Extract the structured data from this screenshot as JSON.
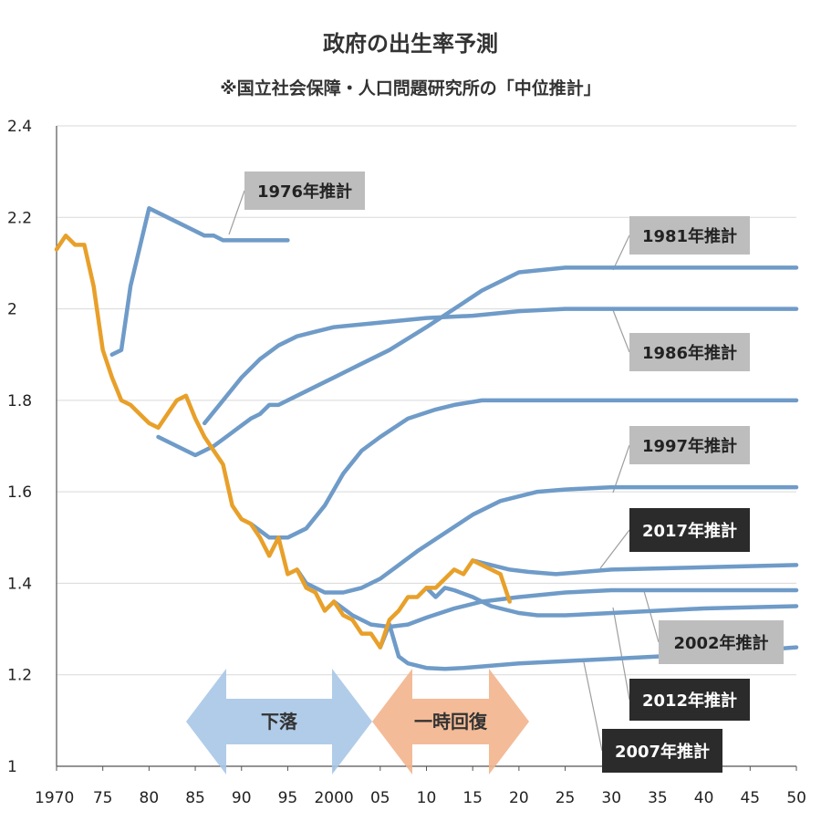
{
  "header": {
    "title": "政府の出生率予測",
    "subtitle": "※国立社会保障・人口問題研究所の「中位推計」"
  },
  "colors": {
    "actual": "#E8A02A",
    "projection": "#6F9BC8",
    "label_light_bg": "#BDBDBD",
    "label_dark_bg": "#2B2B2B",
    "arrow_down": "#A7C6E6",
    "arrow_up": "#F2B48C"
  },
  "chart_data": {
    "type": "line",
    "title": "政府の出生率予測",
    "subtitle": "※国立社会保障・人口問題研究所の「中位推計」",
    "xlim": [
      1970,
      2050
    ],
    "ylim": [
      1,
      2.4
    ],
    "grid": "horizontal",
    "x_ticks": [
      {
        "value": 1970,
        "label": "1970"
      },
      {
        "value": 1975,
        "label": "75"
      },
      {
        "value": 1980,
        "label": "80"
      },
      {
        "value": 1985,
        "label": "85"
      },
      {
        "value": 1990,
        "label": "90"
      },
      {
        "value": 1995,
        "label": "95"
      },
      {
        "value": 2000,
        "label": "2000"
      },
      {
        "value": 2005,
        "label": "05"
      },
      {
        "value": 2010,
        "label": "10"
      },
      {
        "value": 2015,
        "label": "15"
      },
      {
        "value": 2020,
        "label": "20"
      },
      {
        "value": 2025,
        "label": "25"
      },
      {
        "value": 2030,
        "label": "30"
      },
      {
        "value": 2035,
        "label": "35"
      },
      {
        "value": 2040,
        "label": "40"
      },
      {
        "value": 2045,
        "label": "45"
      },
      {
        "value": 2050,
        "label": "50"
      }
    ],
    "y_ticks": [
      {
        "value": 1,
        "label": "1"
      },
      {
        "value": 1.2,
        "label": "1.2"
      },
      {
        "value": 1.4,
        "label": "1.4"
      },
      {
        "value": 1.6,
        "label": "1.6"
      },
      {
        "value": 1.8,
        "label": "1.8"
      },
      {
        "value": 2,
        "label": "2"
      },
      {
        "value": 2.2,
        "label": "2.2"
      },
      {
        "value": 2.4,
        "label": "2.4"
      }
    ],
    "actual": {
      "x": [
        1970,
        1971,
        1972,
        1973,
        1974,
        1975,
        1976,
        1977,
        1978,
        1979,
        1980,
        1981,
        1982,
        1983,
        1984,
        1985,
        1986,
        1987,
        1988,
        1989,
        1990,
        1991,
        1992,
        1993,
        1994,
        1995,
        1996,
        1997,
        1998,
        1999,
        2000,
        2001,
        2002,
        2003,
        2004,
        2005,
        2006,
        2007,
        2008,
        2009,
        2010,
        2011,
        2012,
        2013,
        2014,
        2015,
        2016,
        2017,
        2018,
        2019
      ],
      "y": [
        2.13,
        2.16,
        2.14,
        2.14,
        2.05,
        1.91,
        1.85,
        1.8,
        1.79,
        1.77,
        1.75,
        1.74,
        1.77,
        1.8,
        1.81,
        1.76,
        1.72,
        1.69,
        1.66,
        1.57,
        1.54,
        1.53,
        1.5,
        1.46,
        1.5,
        1.42,
        1.43,
        1.39,
        1.38,
        1.34,
        1.36,
        1.33,
        1.32,
        1.29,
        1.29,
        1.26,
        1.32,
        1.34,
        1.37,
        1.37,
        1.39,
        1.39,
        1.41,
        1.43,
        1.42,
        1.45,
        1.44,
        1.43,
        1.42,
        1.36
      ]
    },
    "projections": [
      {
        "name": "1976年推計",
        "dark": false,
        "x": [
          1976,
          1977,
          1978,
          1980,
          1983,
          1986,
          1987,
          1988,
          1990,
          1995
        ],
        "y": [
          1.9,
          1.91,
          2.05,
          2.22,
          2.19,
          2.16,
          2.16,
          2.15,
          2.15,
          2.15
        ]
      },
      {
        "name": "1981年推計",
        "dark": false,
        "x": [
          1981,
          1983,
          1985,
          1987,
          1989,
          1991,
          1992,
          1993,
          1994,
          1996,
          1998,
          2000,
          2003,
          2006,
          2010,
          2013,
          2016,
          2020,
          2025,
          2030,
          2040,
          2050
        ],
        "y": [
          1.72,
          1.7,
          1.68,
          1.7,
          1.73,
          1.76,
          1.77,
          1.79,
          1.79,
          1.81,
          1.83,
          1.85,
          1.88,
          1.91,
          1.96,
          2.0,
          2.04,
          2.08,
          2.09,
          2.09,
          2.09,
          2.09
        ]
      },
      {
        "name": "1986年推計",
        "dark": false,
        "x": [
          1986,
          1988,
          1990,
          1992,
          1994,
          1996,
          1998,
          2000,
          2005,
          2010,
          2015,
          2020,
          2025,
          2030,
          2040,
          2050
        ],
        "y": [
          1.75,
          1.8,
          1.85,
          1.89,
          1.92,
          1.94,
          1.95,
          1.96,
          1.97,
          1.98,
          1.985,
          1.995,
          2.0,
          2.0,
          2.0,
          2.0
        ]
      },
      {
        "name": "1997年推計",
        "dark": false,
        "x": [
          1991,
          1993,
          1995,
          1997,
          1999,
          2001,
          2003,
          2005,
          2008,
          2011,
          2013,
          2016,
          2020,
          2025,
          2030,
          2040,
          2050
        ],
        "y": [
          1.53,
          1.5,
          1.5,
          1.52,
          1.57,
          1.64,
          1.69,
          1.72,
          1.76,
          1.78,
          1.79,
          1.8,
          1.8,
          1.8,
          1.8,
          1.8,
          1.8
        ]
      },
      {
        "name": "2002年推計",
        "dark": false,
        "x": [
          1996,
          1997,
          1999,
          2001,
          2003,
          2005,
          2007,
          2009,
          2012,
          2015,
          2018,
          2022,
          2025,
          2030,
          2040,
          2050
        ],
        "y": [
          1.43,
          1.4,
          1.38,
          1.38,
          1.39,
          1.41,
          1.44,
          1.47,
          1.51,
          1.55,
          1.58,
          1.6,
          1.605,
          1.61,
          1.61,
          1.61
        ]
      },
      {
        "name": "2007年推計",
        "dark": true,
        "x": [
          2005,
          2006,
          2007,
          2008,
          2010,
          2012,
          2014,
          2017,
          2020,
          2025,
          2030,
          2040,
          2050
        ],
        "y": [
          1.26,
          1.31,
          1.24,
          1.225,
          1.215,
          1.213,
          1.215,
          1.22,
          1.225,
          1.23,
          1.235,
          1.245,
          1.26
        ]
      },
      {
        "name": "2012年推計",
        "dark": true,
        "x": [
          2000,
          2002,
          2004,
          2006,
          2008,
          2010,
          2013,
          2016,
          2020,
          2025,
          2030,
          2040,
          2050
        ],
        "y": [
          1.36,
          1.33,
          1.31,
          1.305,
          1.31,
          1.325,
          1.345,
          1.36,
          1.37,
          1.38,
          1.385,
          1.385,
          1.385
        ]
      },
      {
        "name": "2017年推計",
        "dark": true,
        "x": [
          2010,
          2011,
          2012,
          2013,
          2015,
          2017,
          2020,
          2022,
          2025,
          2030,
          2040,
          2050
        ],
        "y": [
          1.39,
          1.37,
          1.39,
          1.385,
          1.37,
          1.35,
          1.335,
          1.33,
          1.33,
          1.335,
          1.345,
          1.35
        ]
      },
      {
        "name": "2017年推計-upper",
        "dark": true,
        "x": [
          2015,
          2017,
          2019,
          2021,
          2024,
          2027,
          2030,
          2040,
          2050
        ],
        "y": [
          1.45,
          1.44,
          1.43,
          1.425,
          1.42,
          1.425,
          1.43,
          1.435,
          1.44
        ]
      }
    ],
    "labels": [
      {
        "text": "1976年推計",
        "dark": false
      },
      {
        "text": "1981年推計",
        "dark": false
      },
      {
        "text": "1986年推計",
        "dark": false
      },
      {
        "text": "1997年推計",
        "dark": false
      },
      {
        "text": "2017年推計",
        "dark": true
      },
      {
        "text": "2002年推計",
        "dark": false
      },
      {
        "text": "2012年推計",
        "dark": true
      },
      {
        "text": "2007年推計",
        "dark": true
      }
    ],
    "annotations": [
      {
        "text": "下落",
        "direction": "decline"
      },
      {
        "text": "一時回復",
        "direction": "recovery"
      }
    ]
  }
}
